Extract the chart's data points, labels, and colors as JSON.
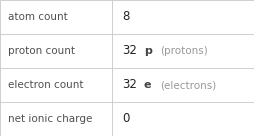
{
  "rows": [
    {
      "label": "atom count",
      "value": "8",
      "symbol": "",
      "extra": ""
    },
    {
      "label": "proton count",
      "value": "32",
      "symbol": "p",
      "extra": "(protons)"
    },
    {
      "label": "electron count",
      "value": "32",
      "symbol": "e",
      "extra": "(electrons)"
    },
    {
      "label": "net ionic charge",
      "value": "0",
      "symbol": "",
      "extra": ""
    }
  ],
  "col_split": 0.44,
  "bg_color": "#ffffff",
  "line_color": "#c8c8c8",
  "label_color": "#505050",
  "value_color": "#222222",
  "symbol_color": "#444444",
  "extra_color": "#999999",
  "label_fontsize": 7.5,
  "value_fontsize": 8.5,
  "symbol_fontsize": 8.0,
  "extra_fontsize": 7.5
}
